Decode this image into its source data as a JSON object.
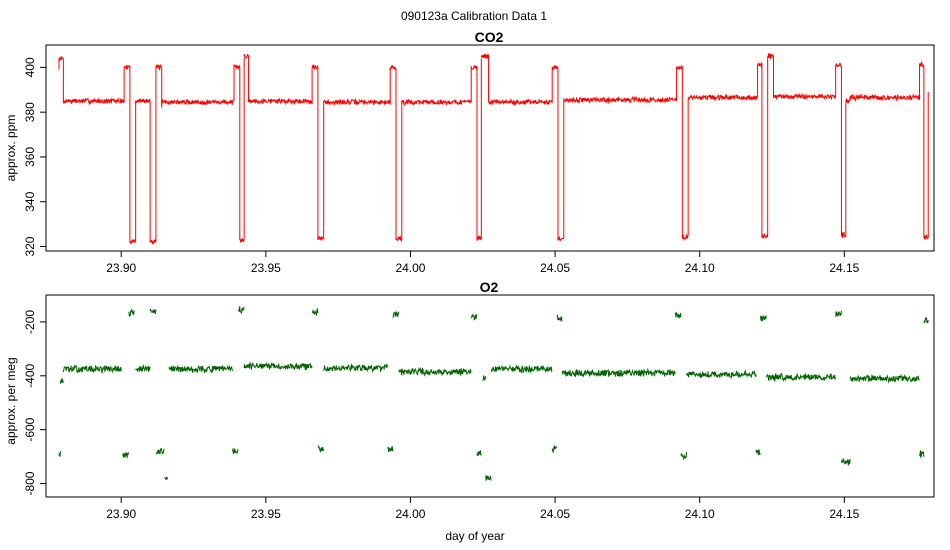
{
  "figure": {
    "title": "090123a   Calibration Data 1",
    "xlabel": "day of year"
  },
  "colors": {
    "co2_line": "#ff0000",
    "o2_line": "#006400",
    "frame": "#000000",
    "background": "#ffffff"
  },
  "chart_data": [
    {
      "type": "line",
      "title": "CO2",
      "xlabel": "",
      "ylabel": "approx. ppm",
      "xlim": [
        23.874,
        24.181
      ],
      "ylim": [
        318,
        410
      ],
      "xticks": [
        23.9,
        23.95,
        24.0,
        24.05,
        24.1,
        24.15
      ],
      "xtick_labels": [
        "23.90",
        "23.95",
        "24.00",
        "24.05",
        "24.10",
        "24.15"
      ],
      "yticks": [
        320,
        340,
        360,
        380,
        400
      ],
      "ytick_labels": [
        "320",
        "340",
        "360",
        "380",
        "400"
      ],
      "grid": false,
      "series": [
        {
          "color": "#ff0000",
          "segments": [
            {
              "x0": 23.8785,
              "x1": 23.88,
              "y": 404,
              "from": 399,
              "to": 384
            },
            {
              "x0": 23.88,
              "x1": 23.901,
              "y": 385,
              "from": 384,
              "to": 400
            },
            {
              "x0": 23.901,
              "x1": 23.903,
              "y": 400,
              "from": 400,
              "to": 322
            },
            {
              "x0": 23.903,
              "x1": 23.905,
              "y": 322.5,
              "from": 322,
              "to": 385
            },
            {
              "x0": 23.905,
              "x1": 23.91,
              "y": 385,
              "from": 385,
              "to": 322
            },
            {
              "x0": 23.91,
              "x1": 23.912,
              "y": 322.5,
              "from": 322,
              "to": 400
            },
            {
              "x0": 23.912,
              "x1": 23.914,
              "y": 400,
              "from": 400,
              "to": 382
            },
            {
              "x0": 23.914,
              "x1": 23.939,
              "y": 384.5,
              "from": 383,
              "to": 400
            },
            {
              "x0": 23.939,
              "x1": 23.941,
              "y": 400,
              "from": 400,
              "to": 323
            },
            {
              "x0": 23.941,
              "x1": 23.9425,
              "y": 323,
              "from": 323,
              "to": 404
            },
            {
              "x0": 23.9425,
              "x1": 23.944,
              "y": 405,
              "from": 405,
              "to": 385
            },
            {
              "x0": 23.944,
              "x1": 23.966,
              "y": 385,
              "from": 385,
              "to": 400
            },
            {
              "x0": 23.966,
              "x1": 23.968,
              "y": 400,
              "from": 400,
              "to": 323
            },
            {
              "x0": 23.968,
              "x1": 23.97,
              "y": 323.5,
              "from": 323,
              "to": 385
            },
            {
              "x0": 23.97,
              "x1": 23.993,
              "y": 384.5,
              "from": 385,
              "to": 400
            },
            {
              "x0": 23.993,
              "x1": 23.995,
              "y": 400,
              "from": 400,
              "to": 323
            },
            {
              "x0": 23.995,
              "x1": 23.997,
              "y": 323.5,
              "from": 323,
              "to": 385
            },
            {
              "x0": 23.997,
              "x1": 24.021,
              "y": 384.5,
              "from": 385,
              "to": 400
            },
            {
              "x0": 24.021,
              "x1": 24.023,
              "y": 400,
              "from": 400,
              "to": 323
            },
            {
              "x0": 24.023,
              "x1": 24.0245,
              "y": 323.5,
              "from": 323,
              "to": 404
            },
            {
              "x0": 24.0245,
              "x1": 24.027,
              "y": 405,
              "from": 405,
              "to": 385
            },
            {
              "x0": 24.027,
              "x1": 24.049,
              "y": 384.5,
              "from": 385,
              "to": 400
            },
            {
              "x0": 24.049,
              "x1": 24.051,
              "y": 400,
              "from": 400,
              "to": 323
            },
            {
              "x0": 24.051,
              "x1": 24.053,
              "y": 323.5,
              "from": 323,
              "to": 385
            },
            {
              "x0": 24.053,
              "x1": 24.092,
              "y": 385.5,
              "from": 385,
              "to": 400
            },
            {
              "x0": 24.092,
              "x1": 24.094,
              "y": 400,
              "from": 400,
              "to": 324
            },
            {
              "x0": 24.094,
              "x1": 24.096,
              "y": 324,
              "from": 324,
              "to": 386
            },
            {
              "x0": 24.096,
              "x1": 24.12,
              "y": 386.5,
              "from": 386,
              "to": 401
            },
            {
              "x0": 24.12,
              "x1": 24.1215,
              "y": 401,
              "from": 401,
              "to": 324
            },
            {
              "x0": 24.1215,
              "x1": 24.1235,
              "y": 324.5,
              "from": 324,
              "to": 404
            },
            {
              "x0": 24.1235,
              "x1": 24.1255,
              "y": 405,
              "from": 405,
              "to": 387
            },
            {
              "x0": 24.1255,
              "x1": 24.147,
              "y": 387,
              "from": 387,
              "to": 401
            },
            {
              "x0": 24.147,
              "x1": 24.149,
              "y": 401,
              "from": 401,
              "to": 325
            },
            {
              "x0": 24.149,
              "x1": 24.1505,
              "y": 325,
              "from": 325,
              "to": 384
            },
            {
              "x0": 24.1505,
              "x1": 24.152,
              "y": 385,
              "from": 385,
              "to": 387
            },
            {
              "x0": 24.152,
              "x1": 24.176,
              "y": 386.5,
              "from": 387,
              "to": 401
            },
            {
              "x0": 24.176,
              "x1": 24.1775,
              "y": 401,
              "from": 401,
              "to": 325
            },
            {
              "x0": 24.1775,
              "x1": 24.179,
              "y": 324.5,
              "from": 325,
              "to": 389
            }
          ]
        }
      ]
    },
    {
      "type": "line",
      "title": "O2",
      "xlabel": "day of year",
      "ylabel": "approx. per meg",
      "xlim": [
        23.874,
        24.181
      ],
      "ylim": [
        -850,
        -100
      ],
      "xticks": [
        23.9,
        23.95,
        24.0,
        24.05,
        24.1,
        24.15
      ],
      "xtick_labels": [
        "23.90",
        "23.95",
        "24.00",
        "24.05",
        "24.10",
        "24.15"
      ],
      "yticks": [
        -800,
        -600,
        -400,
        -200
      ],
      "ytick_labels": [
        "-800",
        "-600",
        "-400",
        "-200"
      ],
      "grid": false,
      "series": [
        {
          "color": "#006400",
          "segments": [
            {
              "x0": 23.8785,
              "x1": 23.879,
              "y": -690
            },
            {
              "x0": 23.879,
              "x1": 23.88,
              "y": -420
            },
            {
              "x0": 23.88,
              "x1": 23.9,
              "y": -375
            },
            {
              "x0": 23.9005,
              "x1": 23.9025,
              "y": -695
            },
            {
              "x0": 23.9025,
              "x1": 23.9045,
              "y": -165
            },
            {
              "x0": 23.905,
              "x1": 23.91,
              "y": -375
            },
            {
              "x0": 23.91,
              "x1": 23.912,
              "y": -160
            },
            {
              "x0": 23.912,
              "x1": 23.915,
              "y": -680
            },
            {
              "x0": 23.915,
              "x1": 23.916,
              "y": -775
            },
            {
              "x0": 23.9165,
              "x1": 23.9385,
              "y": -375
            },
            {
              "x0": 23.9385,
              "x1": 23.9405,
              "y": -680
            },
            {
              "x0": 23.9405,
              "x1": 23.9425,
              "y": -155
            },
            {
              "x0": 23.9425,
              "x1": 23.966,
              "y": -365
            },
            {
              "x0": 23.966,
              "x1": 23.968,
              "y": -165
            },
            {
              "x0": 23.968,
              "x1": 23.97,
              "y": -670
            },
            {
              "x0": 23.97,
              "x1": 23.992,
              "y": -370
            },
            {
              "x0": 23.992,
              "x1": 23.994,
              "y": -675
            },
            {
              "x0": 23.994,
              "x1": 23.996,
              "y": -175
            },
            {
              "x0": 23.996,
              "x1": 24.021,
              "y": -385
            },
            {
              "x0": 24.021,
              "x1": 24.023,
              "y": -185
            },
            {
              "x0": 24.023,
              "x1": 24.0245,
              "y": -690
            },
            {
              "x0": 24.025,
              "x1": 24.026,
              "y": -410
            },
            {
              "x0": 24.026,
              "x1": 24.028,
              "y": -780
            },
            {
              "x0": 24.028,
              "x1": 24.049,
              "y": -375
            },
            {
              "x0": 24.049,
              "x1": 24.0505,
              "y": -670
            },
            {
              "x0": 24.0505,
              "x1": 24.0525,
              "y": -185
            },
            {
              "x0": 24.0525,
              "x1": 24.0915,
              "y": -390
            },
            {
              "x0": 24.0915,
              "x1": 24.0935,
              "y": -175
            },
            {
              "x0": 24.0935,
              "x1": 24.0955,
              "y": -695
            },
            {
              "x0": 24.0955,
              "x1": 24.1195,
              "y": -395
            },
            {
              "x0": 24.1195,
              "x1": 24.121,
              "y": -685
            },
            {
              "x0": 24.121,
              "x1": 24.123,
              "y": -185
            },
            {
              "x0": 24.123,
              "x1": 24.147,
              "y": -405
            },
            {
              "x0": 24.147,
              "x1": 24.149,
              "y": -170
            },
            {
              "x0": 24.149,
              "x1": 24.152,
              "y": -720
            },
            {
              "x0": 24.152,
              "x1": 24.176,
              "y": -410
            },
            {
              "x0": 24.176,
              "x1": 24.1775,
              "y": -690
            },
            {
              "x0": 24.1775,
              "x1": 24.179,
              "y": -195
            }
          ]
        }
      ]
    }
  ]
}
